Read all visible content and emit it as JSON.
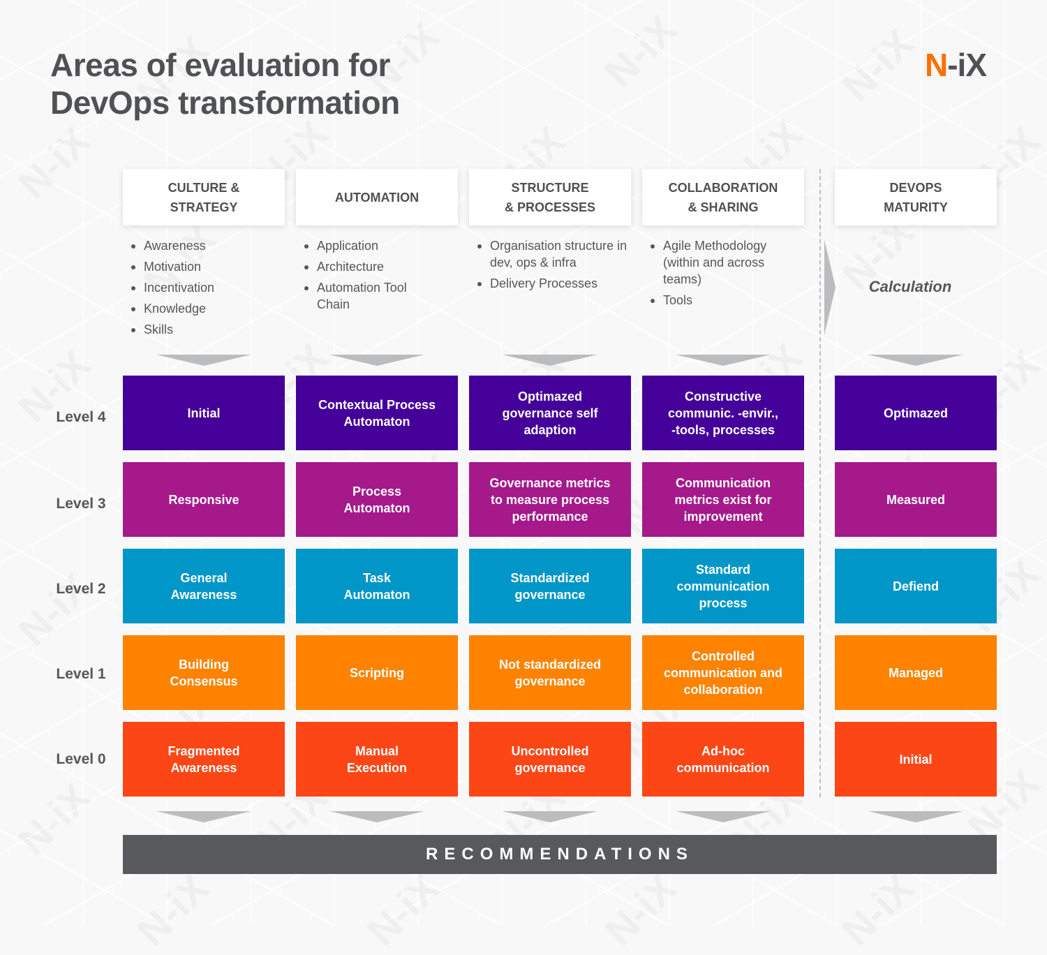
{
  "title": {
    "line1": "Areas of evaluation for",
    "line2": "DevOps transformation"
  },
  "logo": {
    "first": "N",
    "rest": "-iX",
    "accent_color": "#ff6f00",
    "text_color": "#505155"
  },
  "watermark_text": "N-iX",
  "columns": [
    {
      "id": "culture",
      "header": "CULTURE &\nSTRATEGY",
      "bullets": [
        "Awareness",
        "Motivation",
        "Incentivation",
        "Knowledge",
        "Skills"
      ]
    },
    {
      "id": "automation",
      "header": "AUTOMATION",
      "bullets": [
        "Application",
        "Architecture",
        "Automation Tool Chain"
      ]
    },
    {
      "id": "structure",
      "header": "STRUCTURE\n& PROCESSES",
      "bullets": [
        "Organisation structure in dev, ops & infra",
        "Delivery Processes"
      ]
    },
    {
      "id": "collaboration",
      "header": "COLLABORATION\n& SHARING",
      "bullets": [
        "Agile Methodology (within and across teams)",
        "Tools"
      ]
    },
    {
      "id": "maturity",
      "header": "DEVOPS\nMATURITY",
      "calculation": "Calculation"
    }
  ],
  "levels": [
    {
      "label": "Level 4",
      "color": "#440099",
      "cells": [
        "Initial",
        "Contextual Process\nAutomaton",
        "Optimazed\ngovernance self\nadaption",
        "Constructive\ncommunic. -envir.,\n-tools, processes",
        "Optimazed"
      ]
    },
    {
      "label": "Level 3",
      "color": "#a5198b",
      "cells": [
        "Responsive",
        "Process\nAutomaton",
        "Governance metrics\nto measure process\nperformance",
        "Communication\nmetrics exist for\nimprovement",
        "Measured"
      ]
    },
    {
      "label": "Level 2",
      "color": "#0096c8",
      "cells": [
        "General\nAwareness",
        "Task\nAutomaton",
        "Standardized\ngovernance",
        "Standard\ncommunication\nprocess",
        "Defiend"
      ]
    },
    {
      "label": "Level 1",
      "color": "#ff8200",
      "cells": [
        "Building\nConsensus",
        "Scripting",
        "Not standardized\ngovernance",
        "Controlled\ncommunication and\ncollaboration",
        "Managed"
      ]
    },
    {
      "label": "Level 0",
      "color": "#fc4616",
      "cells": [
        "Fragmented\nAwareness",
        "Manual\nExecution",
        "Uncontrolled\ngovernance",
        "Ad-hoc\ncommunication",
        "Initial"
      ]
    }
  ],
  "recommendations": "RECOMMENDATIONS",
  "colors": {
    "background": "#f8f8f8",
    "text": "#555659",
    "arrow": "#bbbcbe",
    "recommendations_bar": "#58595c"
  }
}
